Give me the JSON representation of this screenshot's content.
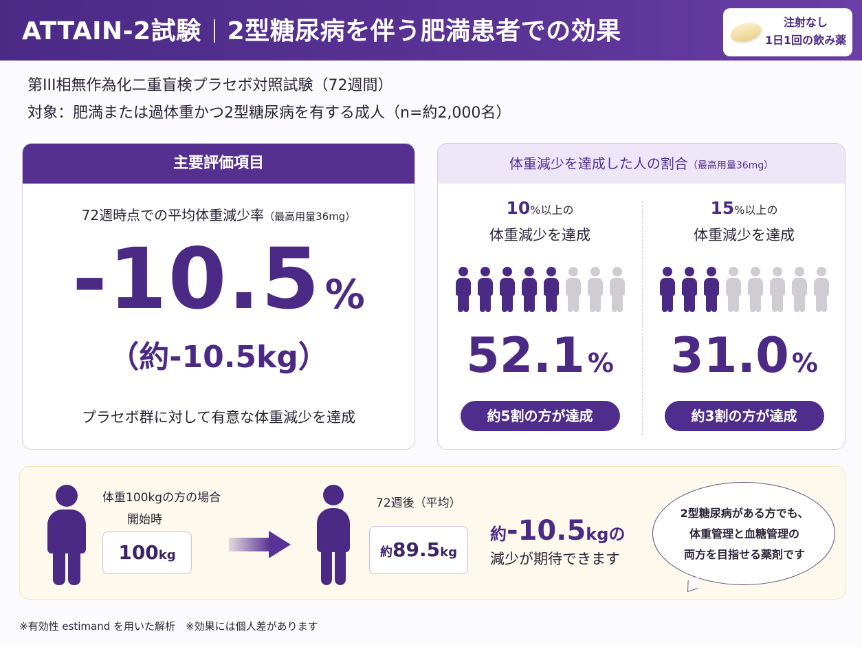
{
  "header": {
    "title_main": "ATTAIN-2試験",
    "title_sub": "2型糖尿病を伴う肥満患者での効果",
    "pill_line1": "注射なし",
    "pill_line2": "1日1回の飲み薬",
    "pill_icon": "tablet-icon"
  },
  "study": {
    "design": "第III相無作為化二重盲検プラセボ対照試験（72週間）",
    "target": "対象：肥満または過体重かつ2型糖尿病を有する成人（n=約2,000名）"
  },
  "primary": {
    "heading": "主要評価項目",
    "subtitle": "72週時点での平均体重減少率",
    "subtitle_dose": "（最高用量36mg）",
    "value": "-10.5",
    "unit": "%",
    "kg": "（約-10.5kg）",
    "note": "プラセボ群に対して有意な体重減少を達成"
  },
  "achievement": {
    "heading": "体重減少を達成した人の割合",
    "heading_dose": "（最高用量36mg）",
    "colors": {
      "filled": "#4b2a86",
      "empty": "#cfccd3"
    },
    "columns": [
      {
        "threshold": "10",
        "threshold_unit": "%以上の",
        "line2": "体重減少を達成",
        "filled_icons": 5,
        "total_icons": 8,
        "value": "52.1",
        "unit": "%",
        "badge": "約5割の方が達成"
      },
      {
        "threshold": "15",
        "threshold_unit": "%以上の",
        "line2": "体重減少を達成",
        "filled_icons": 3,
        "total_icons": 8,
        "value": "31.0",
        "unit": "%",
        "badge": "約3割の方が達成"
      }
    ]
  },
  "example": {
    "case_label": "体重100kgの方の場合",
    "start_label": "開始時",
    "start_value": "100",
    "start_unit": "kg",
    "after_label": "72週後（平均）",
    "after_prefix": "約",
    "after_value": "89.5",
    "after_unit": "kg",
    "expect_prefix": "約",
    "expect_value": "-10.5",
    "expect_unit": "kgの",
    "expect_line2": "減少が期待できます",
    "bubble_line1": "2型糖尿病がある方でも、",
    "bubble_line2": "体重管理と血糖管理の",
    "bubble_line3": "両方を目指せる薬剤です"
  },
  "footnote": "※有効性 estimand を用いた解析　※効果には個人差があります"
}
